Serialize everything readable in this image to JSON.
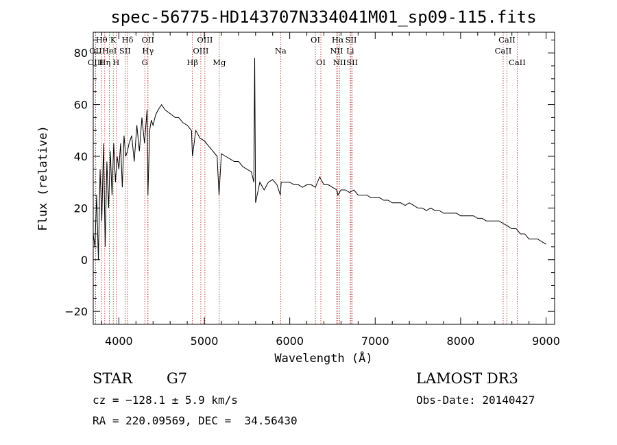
{
  "chart_data": {
    "type": "line",
    "title": "spec-56775-HD143707N334041M01_sp09-115.fits",
    "xlabel": "Wavelength (Å)",
    "ylabel": "Flux (relative)",
    "xlim": [
      3700,
      9100
    ],
    "ylim": [
      -25,
      88
    ],
    "xticks": [
      4000,
      5000,
      6000,
      7000,
      8000,
      9000
    ],
    "yticks": [
      -20,
      0,
      20,
      40,
      60,
      80
    ],
    "x_minor_step": 200,
    "y_minor_step": 5,
    "line_color": "#000000",
    "marker_color": "#b22222",
    "spectrum": {
      "name": "flux",
      "x": [
        3700,
        3720,
        3740,
        3760,
        3780,
        3800,
        3820,
        3840,
        3860,
        3880,
        3900,
        3920,
        3940,
        3960,
        3980,
        4000,
        4020,
        4040,
        4060,
        4080,
        4100,
        4120,
        4150,
        4180,
        4210,
        4240,
        4270,
        4300,
        4330,
        4340,
        4360,
        4380,
        4400,
        4430,
        4460,
        4500,
        4540,
        4580,
        4620,
        4660,
        4700,
        4750,
        4800,
        4850,
        4861,
        4900,
        4950,
        5000,
        5050,
        5100,
        5150,
        5172,
        5200,
        5250,
        5300,
        5350,
        5400,
        5450,
        5500,
        5550,
        5580,
        5590,
        5600,
        5650,
        5700,
        5750,
        5800,
        5850,
        5890,
        5900,
        5950,
        6000,
        6050,
        6100,
        6150,
        6200,
        6250,
        6300,
        6350,
        6400,
        6450,
        6500,
        6550,
        6563,
        6600,
        6650,
        6700,
        6750,
        6800,
        6850,
        6900,
        6950,
        7000,
        7050,
        7100,
        7150,
        7200,
        7250,
        7300,
        7350,
        7400,
        7450,
        7500,
        7550,
        7600,
        7650,
        7700,
        7750,
        7800,
        7850,
        7900,
        7950,
        8000,
        8050,
        8100,
        8150,
        8200,
        8250,
        8300,
        8350,
        8400,
        8450,
        8500,
        8550,
        8600,
        8650,
        8700,
        8750,
        8800,
        8850,
        8900,
        8950,
        9000
      ],
      "y": [
        10,
        5,
        25,
        0,
        35,
        15,
        45,
        5,
        38,
        20,
        42,
        25,
        45,
        30,
        40,
        35,
        45,
        28,
        48,
        40,
        42,
        45,
        48,
        38,
        52,
        42,
        55,
        45,
        58,
        25,
        50,
        54,
        52,
        56,
        58,
        60,
        58,
        57,
        56,
        55,
        55,
        53,
        52,
        50,
        40,
        50,
        47,
        46,
        44,
        42,
        40,
        25,
        41,
        40,
        39,
        38,
        38,
        36,
        35,
        34,
        30,
        78,
        22,
        30,
        27,
        30,
        31,
        29,
        25,
        30,
        30,
        30,
        29,
        29,
        28,
        29,
        29,
        28,
        32,
        29,
        29,
        28,
        27,
        25,
        27,
        27,
        26,
        27,
        25,
        25,
        25,
        24,
        24,
        24,
        23,
        23,
        22,
        22,
        22,
        21,
        22,
        21,
        20,
        20,
        19,
        20,
        19,
        19,
        18,
        18,
        18,
        18,
        17,
        17,
        17,
        17,
        16,
        16,
        15,
        15,
        15,
        15,
        14,
        13,
        12,
        12,
        10,
        10,
        8,
        8,
        8,
        7,
        6
      ]
    },
    "spectral_lines": [
      {
        "name": "Hθ",
        "wavelength": 3798,
        "row": 0
      },
      {
        "name": "K",
        "wavelength": 3934,
        "row": 0
      },
      {
        "name": "Hδ",
        "wavelength": 4102,
        "row": 0
      },
      {
        "name": "OII",
        "wavelength": 4340,
        "row": 0
      },
      {
        "name": "OIII",
        "wavelength": 5007,
        "row": 0
      },
      {
        "name": "OI",
        "wavelength": 6300,
        "row": 0
      },
      {
        "name": "Hα",
        "wavelength": 6563,
        "row": 0
      },
      {
        "name": "SII",
        "wavelength": 6717,
        "row": 0
      },
      {
        "name": "CaII",
        "wavelength": 8542,
        "row": 0
      },
      {
        "name": "OII",
        "wavelength": 3727,
        "row": 1
      },
      {
        "name": "HeI",
        "wavelength": 3889,
        "row": 1
      },
      {
        "name": "SII",
        "wavelength": 4072,
        "row": 1
      },
      {
        "name": "Hγ",
        "wavelength": 4340,
        "row": 1
      },
      {
        "name": "OIII",
        "wavelength": 4959,
        "row": 1
      },
      {
        "name": "Na",
        "wavelength": 5893,
        "row": 1
      },
      {
        "name": "NII",
        "wavelength": 6548,
        "row": 1
      },
      {
        "name": "Li",
        "wavelength": 6708,
        "row": 1
      },
      {
        "name": "CaII",
        "wavelength": 8498,
        "row": 1
      },
      {
        "name": "OIII",
        "wavelength": 3727,
        "row": 2
      },
      {
        "name": "Hη",
        "wavelength": 3835,
        "row": 2
      },
      {
        "name": "H",
        "wavelength": 3968,
        "row": 2
      },
      {
        "name": "G",
        "wavelength": 4304,
        "row": 2
      },
      {
        "name": "Hβ",
        "wavelength": 4861,
        "row": 2
      },
      {
        "name": "Mg",
        "wavelength": 5175,
        "row": 2
      },
      {
        "name": "OI",
        "wavelength": 6364,
        "row": 2
      },
      {
        "name": "NII",
        "wavelength": 6583,
        "row": 2
      },
      {
        "name": "SII",
        "wavelength": 6731,
        "row": 2
      },
      {
        "name": "CaII",
        "wavelength": 8662,
        "row": 2
      }
    ]
  },
  "info": {
    "object_class": "STAR",
    "subclass": "G7",
    "survey": "LAMOST DR3",
    "redshift": "cz = −128.1 ± 5.9 km/s",
    "obs_date": "Obs-Date: 20140427",
    "coords": "RA = 220.09569, DEC =  34.56430"
  }
}
